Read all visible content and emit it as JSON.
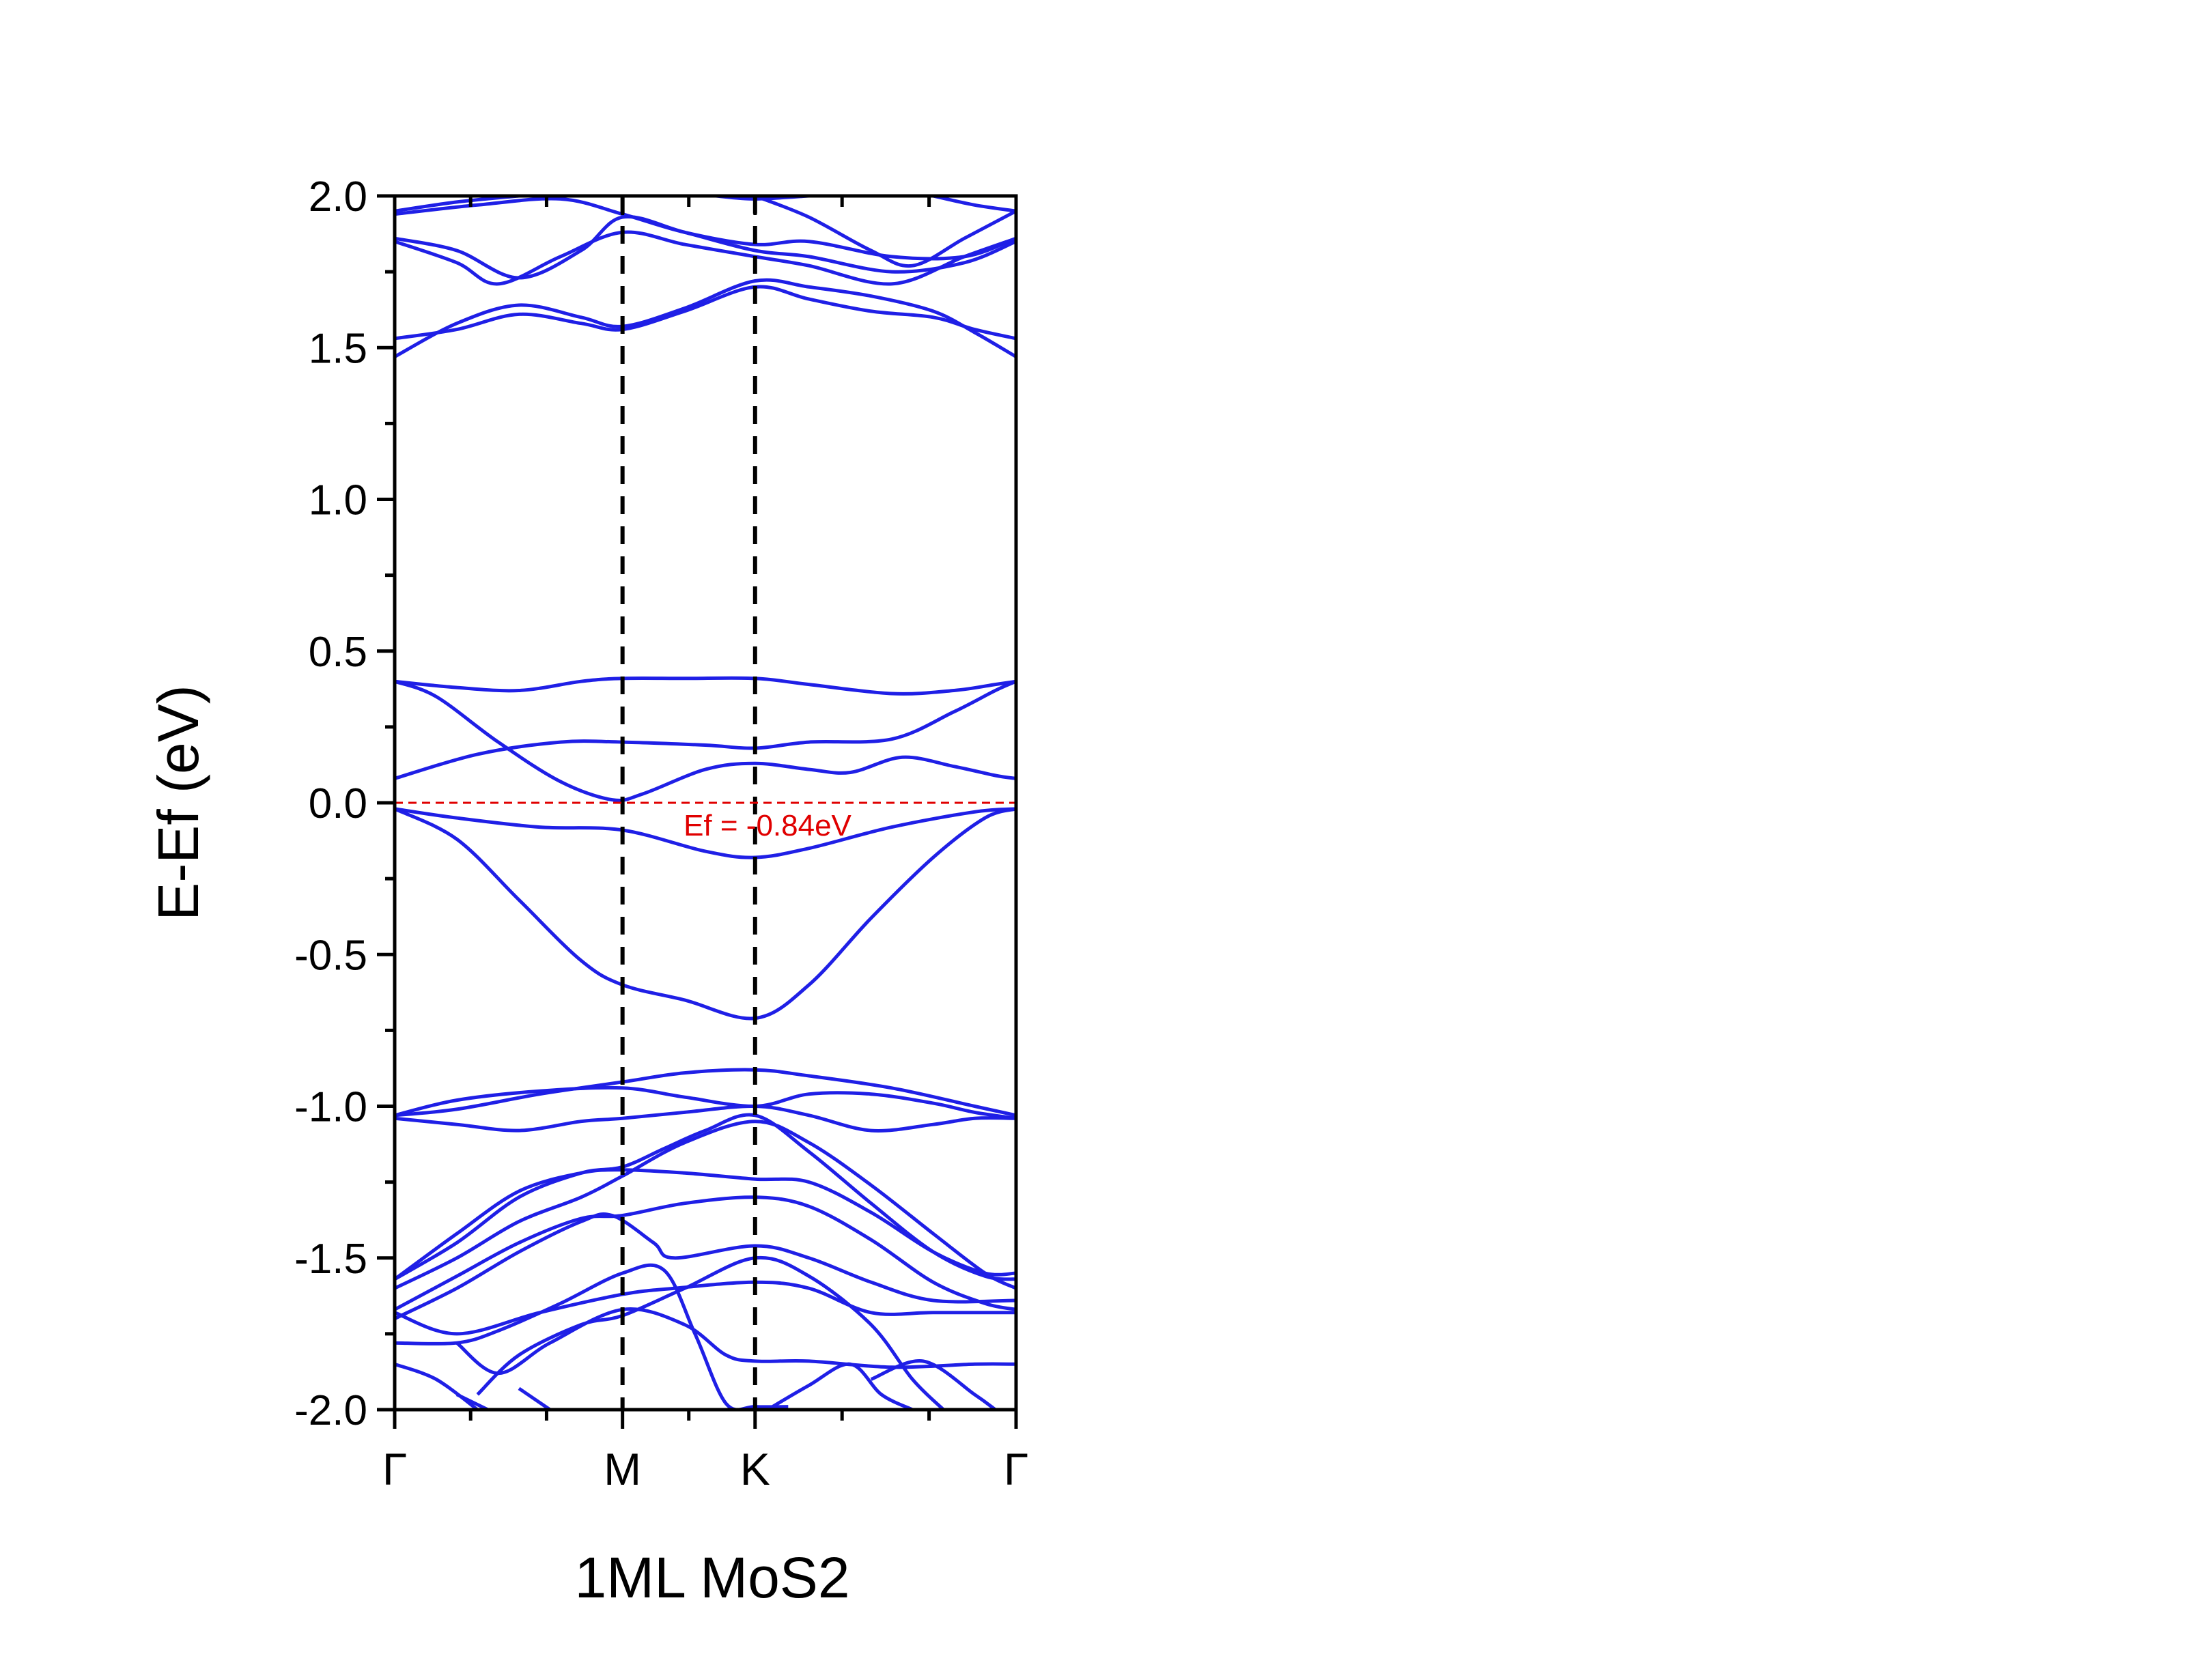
{
  "chart_data": {
    "type": "line",
    "title": "",
    "xlabel": "1ML MoS2",
    "ylabel": "E-Ef (eV)",
    "ylim": [
      -2.0,
      2.0
    ],
    "y_ticks": [
      "2.0",
      "1.5",
      "1.0",
      "0.5",
      "0.0",
      "-0.5",
      "-1.0",
      "-1.5",
      "-2.0"
    ],
    "x_ticks": [
      {
        "label": "Γ",
        "x": 0
      },
      {
        "label": "M",
        "x": 1.1
      },
      {
        "label": "K",
        "x": 1.74
      },
      {
        "label": "Γ",
        "x": 3.0
      }
    ],
    "xlim": [
      0,
      3.0
    ],
    "grid": false,
    "line_color": "#1f1fe6",
    "fermi_level": {
      "y": 0.0,
      "label": "Ef = -0.84eV",
      "color": "#e00000"
    },
    "series": [
      {
        "values": [
          [
            0,
            -0.02
          ],
          [
            0.3,
            -0.05
          ],
          [
            0.7,
            -0.08
          ],
          [
            1.1,
            -0.09
          ],
          [
            1.5,
            -0.16
          ],
          [
            1.74,
            -0.18
          ],
          [
            2.0,
            -0.15
          ],
          [
            2.4,
            -0.08
          ],
          [
            2.8,
            -0.03
          ],
          [
            3.0,
            -0.02
          ]
        ]
      },
      {
        "values": [
          [
            0,
            -0.02
          ],
          [
            0.3,
            -0.12
          ],
          [
            0.6,
            -0.32
          ],
          [
            0.9,
            -0.52
          ],
          [
            1.1,
            -0.6
          ],
          [
            1.4,
            -0.65
          ],
          [
            1.74,
            -0.71
          ],
          [
            2.0,
            -0.6
          ],
          [
            2.3,
            -0.38
          ],
          [
            2.6,
            -0.18
          ],
          [
            2.85,
            -0.05
          ],
          [
            3.0,
            -0.02
          ]
        ]
      },
      {
        "values": [
          [
            0,
            0.08
          ],
          [
            0.4,
            0.16
          ],
          [
            0.8,
            0.2
          ],
          [
            1.1,
            0.2
          ],
          [
            1.5,
            0.19
          ],
          [
            1.74,
            0.18
          ],
          [
            2.0,
            0.2
          ],
          [
            2.4,
            0.21
          ],
          [
            2.7,
            0.3
          ],
          [
            2.9,
            0.37
          ],
          [
            3.0,
            0.4
          ]
        ]
      },
      {
        "values": [
          [
            0,
            0.4
          ],
          [
            0.2,
            0.35
          ],
          [
            0.5,
            0.2
          ],
          [
            0.8,
            0.07
          ],
          [
            1.05,
            0.01
          ],
          [
            1.2,
            0.03
          ],
          [
            1.5,
            0.11
          ],
          [
            1.74,
            0.13
          ],
          [
            2.0,
            0.11
          ],
          [
            2.2,
            0.1
          ],
          [
            2.45,
            0.15
          ],
          [
            2.7,
            0.12
          ],
          [
            2.9,
            0.09
          ],
          [
            3.0,
            0.08
          ]
        ]
      },
      {
        "values": [
          [
            0,
            0.4
          ],
          [
            0.3,
            0.38
          ],
          [
            0.6,
            0.37
          ],
          [
            0.9,
            0.4
          ],
          [
            1.1,
            0.41
          ],
          [
            1.4,
            0.41
          ],
          [
            1.74,
            0.41
          ],
          [
            2.0,
            0.39
          ],
          [
            2.4,
            0.36
          ],
          [
            2.7,
            0.37
          ],
          [
            2.9,
            0.39
          ],
          [
            3.0,
            0.4
          ]
        ]
      },
      {
        "values": [
          [
            0,
            -1.03
          ],
          [
            0.3,
            -1.01
          ],
          [
            0.7,
            -0.96
          ],
          [
            1.1,
            -0.92
          ],
          [
            1.4,
            -0.89
          ],
          [
            1.74,
            -0.88
          ],
          [
            2.0,
            -0.9
          ],
          [
            2.4,
            -0.94
          ],
          [
            2.8,
            -1.0
          ],
          [
            3.0,
            -1.03
          ]
        ]
      },
      {
        "values": [
          [
            0,
            -1.03
          ],
          [
            0.3,
            -0.98
          ],
          [
            0.7,
            -0.95
          ],
          [
            1.1,
            -0.94
          ],
          [
            1.4,
            -0.97
          ],
          [
            1.74,
            -1.0
          ],
          [
            2.0,
            -0.96
          ],
          [
            2.3,
            -0.96
          ],
          [
            2.6,
            -0.99
          ],
          [
            2.8,
            -1.02
          ],
          [
            3.0,
            -1.04
          ]
        ]
      },
      {
        "values": [
          [
            0,
            -1.04
          ],
          [
            0.3,
            -1.06
          ],
          [
            0.6,
            -1.08
          ],
          [
            0.9,
            -1.05
          ],
          [
            1.1,
            -1.04
          ],
          [
            1.4,
            -1.02
          ],
          [
            1.74,
            -1.0
          ],
          [
            2.0,
            -1.03
          ],
          [
            2.3,
            -1.08
          ],
          [
            2.6,
            -1.06
          ],
          [
            2.8,
            -1.04
          ],
          [
            3.0,
            -1.04
          ]
        ]
      },
      {
        "values": [
          [
            0,
            -1.57
          ],
          [
            0.3,
            -1.45
          ],
          [
            0.6,
            -1.3
          ],
          [
            0.9,
            -1.22
          ],
          [
            1.1,
            -1.2
          ],
          [
            1.3,
            -1.14
          ],
          [
            1.5,
            -1.08
          ],
          [
            1.74,
            -1.03
          ],
          [
            2.0,
            -1.15
          ],
          [
            2.3,
            -1.32
          ],
          [
            2.6,
            -1.48
          ],
          [
            2.85,
            -1.56
          ],
          [
            3.0,
            -1.57
          ]
        ]
      },
      {
        "values": [
          [
            0,
            -1.57
          ],
          [
            0.3,
            -1.42
          ],
          [
            0.6,
            -1.28
          ],
          [
            0.9,
            -1.22
          ],
          [
            1.1,
            -1.21
          ],
          [
            1.4,
            -1.22
          ],
          [
            1.74,
            -1.24
          ],
          [
            2.0,
            -1.25
          ],
          [
            2.3,
            -1.35
          ],
          [
            2.6,
            -1.48
          ],
          [
            2.85,
            -1.55
          ],
          [
            3.0,
            -1.55
          ]
        ]
      },
      {
        "values": [
          [
            0,
            -1.6
          ],
          [
            0.3,
            -1.5
          ],
          [
            0.6,
            -1.38
          ],
          [
            0.9,
            -1.3
          ],
          [
            1.1,
            -1.23
          ],
          [
            1.4,
            -1.12
          ],
          [
            1.74,
            -1.05
          ],
          [
            2.0,
            -1.12
          ],
          [
            2.3,
            -1.26
          ],
          [
            2.6,
            -1.42
          ],
          [
            2.85,
            -1.55
          ],
          [
            3.0,
            -1.6
          ]
        ]
      },
      {
        "values": [
          [
            0,
            -1.67
          ],
          [
            0.3,
            -1.56
          ],
          [
            0.6,
            -1.45
          ],
          [
            0.9,
            -1.37
          ],
          [
            1.1,
            -1.36
          ],
          [
            1.4,
            -1.32
          ],
          [
            1.74,
            -1.3
          ],
          [
            2.0,
            -1.33
          ],
          [
            2.3,
            -1.44
          ],
          [
            2.6,
            -1.58
          ],
          [
            2.85,
            -1.65
          ],
          [
            3.0,
            -1.67
          ]
        ]
      },
      {
        "values": [
          [
            0,
            -1.7
          ],
          [
            0.3,
            -1.6
          ],
          [
            0.6,
            -1.48
          ],
          [
            0.9,
            -1.38
          ],
          [
            1.05,
            -1.36
          ],
          [
            1.25,
            -1.45
          ],
          [
            1.35,
            -1.5
          ],
          [
            1.74,
            -1.46
          ],
          [
            2.0,
            -1.5
          ],
          [
            2.3,
            -1.58
          ],
          [
            2.6,
            -1.64
          ],
          [
            3.0,
            -1.64
          ]
        ]
      },
      {
        "values": [
          [
            0,
            -1.68
          ],
          [
            0.3,
            -1.75
          ],
          [
            0.7,
            -1.68
          ],
          [
            1.1,
            -1.62
          ],
          [
            1.35,
            -1.6
          ],
          [
            1.74,
            -1.58
          ],
          [
            2.0,
            -1.6
          ],
          [
            2.3,
            -1.68
          ],
          [
            2.6,
            -1.68
          ],
          [
            3.0,
            -1.68
          ]
        ]
      },
      {
        "values": [
          [
            0,
            -1.78
          ],
          [
            0.3,
            -1.78
          ],
          [
            0.5,
            -1.74
          ],
          [
            0.8,
            -1.65
          ],
          [
            1.1,
            -1.55
          ],
          [
            1.3,
            -1.54
          ],
          [
            1.45,
            -1.75
          ],
          [
            1.6,
            -1.98
          ],
          [
            1.74,
            -1.99
          ],
          [
            1.9,
            -1.99
          ]
        ]
      },
      {
        "values": [
          [
            0.3,
            -1.78
          ],
          [
            0.5,
            -1.88
          ],
          [
            0.75,
            -1.78
          ],
          [
            1.1,
            -1.67
          ],
          [
            1.4,
            -1.72
          ],
          [
            1.6,
            -1.82
          ],
          [
            1.74,
            -1.84
          ],
          [
            2.0,
            -1.84
          ],
          [
            2.4,
            -1.86
          ],
          [
            2.8,
            -1.85
          ],
          [
            3.0,
            -1.85
          ]
        ]
      },
      {
        "values": [
          [
            0.4,
            -1.95
          ],
          [
            0.6,
            -1.82
          ],
          [
            0.9,
            -1.72
          ],
          [
            1.1,
            -1.69
          ],
          [
            1.4,
            -1.6
          ],
          [
            1.74,
            -1.5
          ],
          [
            2.0,
            -1.56
          ],
          [
            2.3,
            -1.72
          ],
          [
            2.5,
            -1.9
          ],
          [
            2.65,
            -2.0
          ]
        ]
      },
      {
        "values": [
          [
            0,
            -1.85
          ],
          [
            0.2,
            -1.9
          ],
          [
            0.4,
            -2.0
          ]
        ]
      },
      {
        "values": [
          [
            0.6,
            -1.93
          ],
          [
            0.75,
            -2.0
          ]
        ]
      },
      {
        "values": [
          [
            0.3,
            -1.95
          ],
          [
            0.45,
            -2.0
          ]
        ]
      },
      {
        "values": [
          [
            1.8,
            -2.0
          ],
          [
            2.0,
            -1.92
          ],
          [
            2.2,
            -1.85
          ],
          [
            2.35,
            -1.95
          ],
          [
            2.5,
            -2.0
          ]
        ]
      },
      {
        "values": [
          [
            2.3,
            -1.9
          ],
          [
            2.55,
            -1.84
          ],
          [
            2.8,
            -1.95
          ],
          [
            2.9,
            -2.0
          ]
        ]
      },
      {
        "values": [
          [
            0,
            1.95
          ],
          [
            0.3,
            1.98
          ],
          [
            0.6,
            2.0
          ]
        ]
      },
      {
        "values": [
          [
            0,
            1.94
          ],
          [
            0.4,
            1.97
          ],
          [
            0.8,
            1.99
          ],
          [
            1.1,
            1.94
          ],
          [
            1.4,
            1.88
          ],
          [
            1.74,
            1.84
          ],
          [
            2.0,
            1.85
          ],
          [
            2.4,
            1.8
          ],
          [
            2.75,
            1.8
          ],
          [
            3.0,
            1.86
          ]
        ]
      },
      {
        "values": [
          [
            0,
            1.86
          ],
          [
            0.3,
            1.82
          ],
          [
            0.6,
            1.73
          ],
          [
            0.9,
            1.82
          ],
          [
            1.1,
            1.93
          ],
          [
            1.4,
            1.88
          ],
          [
            1.74,
            1.82
          ],
          [
            2.0,
            1.8
          ],
          [
            2.4,
            1.75
          ],
          [
            2.75,
            1.78
          ],
          [
            3.0,
            1.85
          ]
        ]
      },
      {
        "values": [
          [
            0,
            1.85
          ],
          [
            0.3,
            1.78
          ],
          [
            0.5,
            1.71
          ],
          [
            0.8,
            1.8
          ],
          [
            1.1,
            1.88
          ],
          [
            1.4,
            1.84
          ],
          [
            1.74,
            1.8
          ],
          [
            2.0,
            1.77
          ],
          [
            2.4,
            1.71
          ],
          [
            2.75,
            1.8
          ],
          [
            3.0,
            1.86
          ]
        ]
      },
      {
        "values": [
          [
            0,
            1.47
          ],
          [
            0.3,
            1.58
          ],
          [
            0.6,
            1.64
          ],
          [
            0.9,
            1.6
          ],
          [
            1.1,
            1.57
          ],
          [
            1.4,
            1.63
          ],
          [
            1.74,
            1.72
          ],
          [
            2.0,
            1.7
          ],
          [
            2.3,
            1.67
          ],
          [
            2.6,
            1.62
          ],
          [
            2.8,
            1.55
          ],
          [
            3.0,
            1.47
          ]
        ]
      },
      {
        "values": [
          [
            0,
            1.53
          ],
          [
            0.3,
            1.56
          ],
          [
            0.6,
            1.61
          ],
          [
            0.9,
            1.58
          ],
          [
            1.1,
            1.56
          ],
          [
            1.4,
            1.62
          ],
          [
            1.74,
            1.7
          ],
          [
            2.0,
            1.66
          ],
          [
            2.3,
            1.62
          ],
          [
            2.6,
            1.6
          ],
          [
            2.8,
            1.56
          ],
          [
            3.0,
            1.53
          ]
        ]
      },
      {
        "values": [
          [
            1.74,
            2.0
          ],
          [
            2.0,
            1.93
          ],
          [
            2.3,
            1.82
          ],
          [
            2.5,
            1.77
          ],
          [
            2.75,
            1.86
          ],
          [
            3.0,
            1.95
          ]
        ]
      },
      {
        "values": [
          [
            1.55,
            2.0
          ],
          [
            1.74,
            1.99
          ],
          [
            2.0,
            2.0
          ]
        ]
      },
      {
        "values": [
          [
            2.6,
            2.0
          ],
          [
            2.8,
            1.97
          ],
          [
            3.0,
            1.95
          ]
        ]
      }
    ]
  }
}
